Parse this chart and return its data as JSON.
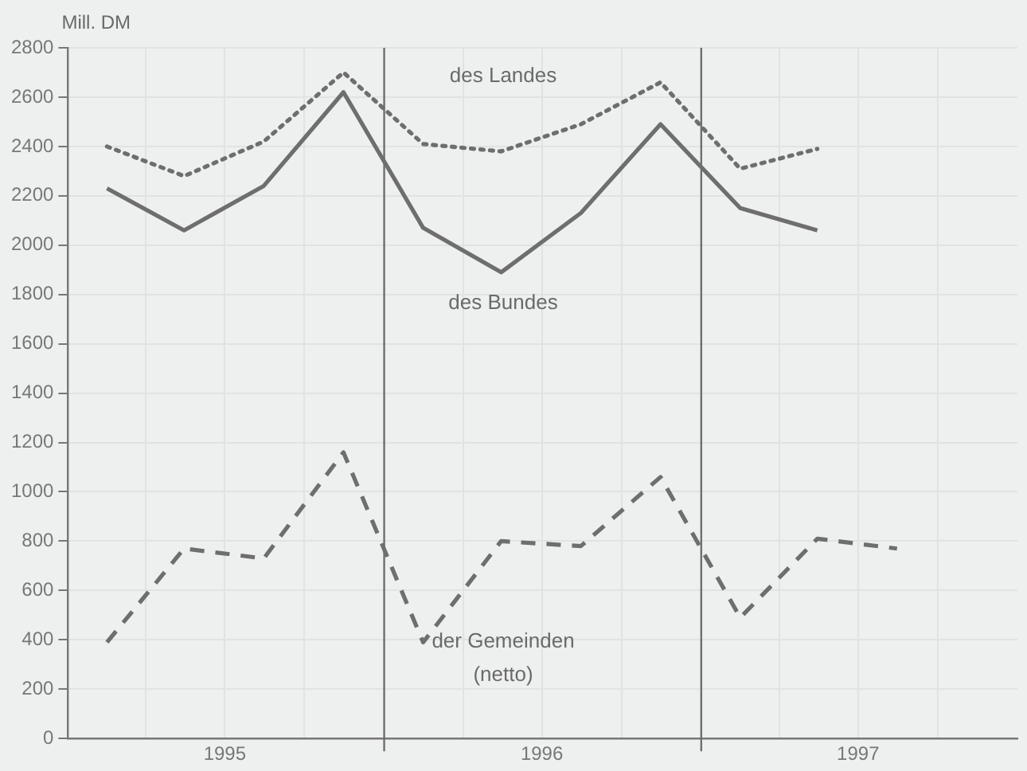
{
  "chart_data": {
    "type": "line",
    "ylabel": "Mill. DM",
    "x": [
      "1995-02-15",
      "1995-05-15",
      "1995-08-15",
      "1995-11-15",
      "1996-02-15",
      "1996-05-15",
      "1996-08-15",
      "1996-11-15",
      "1997-02-15",
      "1997-05-15",
      "1997-08-15"
    ],
    "xlim": [
      "1995-01-01",
      "1998-01-01"
    ],
    "xticks": [
      {
        "value": "1995-04-01",
        "label": null
      },
      {
        "value": "1995-07-01",
        "label": "1995"
      },
      {
        "value": "1995-10-01",
        "label": null
      },
      {
        "value": "1996-04-01",
        "label": null
      },
      {
        "value": "1996-07-01",
        "label": "1996"
      },
      {
        "value": "1996-10-01",
        "label": null
      },
      {
        "value": "1997-04-01",
        "label": null
      },
      {
        "value": "1997-07-01",
        "label": "1997"
      },
      {
        "value": "1997-10-01",
        "label": null
      }
    ],
    "ylim": [
      0,
      2800
    ],
    "yticks": [
      0,
      200,
      400,
      600,
      800,
      1000,
      1200,
      1400,
      1600,
      1800,
      2000,
      2200,
      2400,
      2600,
      2800
    ],
    "grid": true,
    "legend": false,
    "marker": "none",
    "series": [
      {
        "name": "des Landes",
        "color": "#6e6e6e",
        "line_style": "dotted",
        "values": [
          2400,
          2280,
          2420,
          2700,
          2410,
          2380,
          2490,
          2660,
          2310,
          2390,
          null
        ]
      },
      {
        "name": "des Bundes",
        "color": "#6e6e6e",
        "line_style": "solid",
        "values": [
          2230,
          2060,
          2240,
          2620,
          2070,
          1890,
          2130,
          2490,
          2150,
          2060,
          null
        ]
      },
      {
        "name": "der Gemeinden (netto)",
        "color": "#6e6e6e",
        "line_style": "dashed",
        "values": [
          390,
          770,
          730,
          1160,
          390,
          800,
          780,
          1060,
          490,
          810,
          770
        ]
      }
    ],
    "ref_lines": [
      {
        "axis": "x",
        "value": "1996-01-01",
        "color": "#6e6e6e"
      },
      {
        "axis": "x",
        "value": "1997-01-01",
        "color": "#6e6e6e"
      }
    ]
  }
}
